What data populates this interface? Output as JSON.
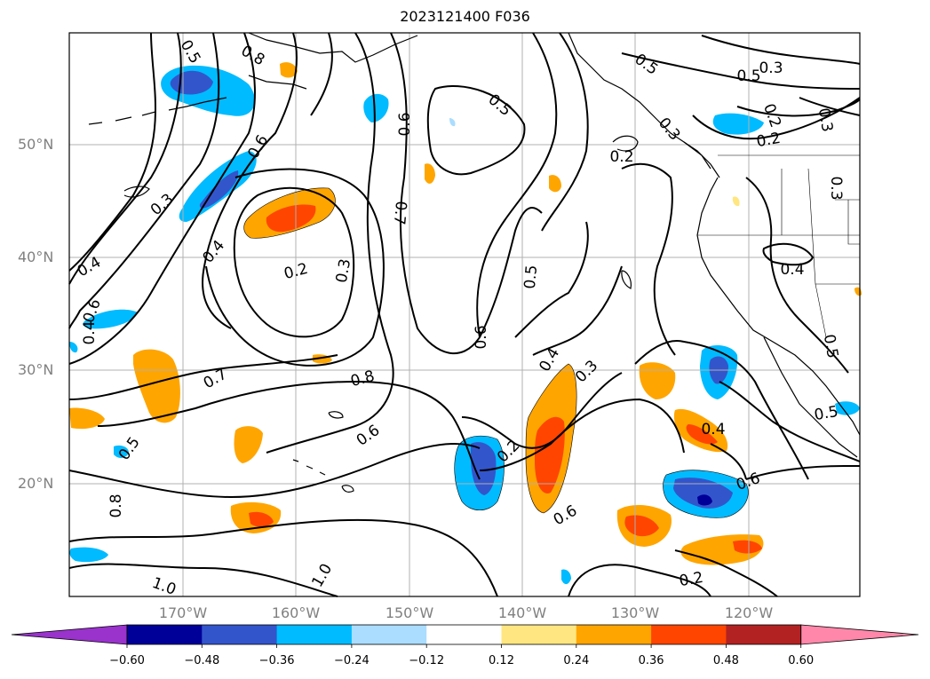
{
  "title": "2023121400 F036",
  "axes": {
    "lat_ticks": [
      "50°N",
      "40°N",
      "30°N",
      "20°N"
    ],
    "lon_ticks": [
      "170°W",
      "160°W",
      "150°W",
      "140°W",
      "130°W",
      "120°W"
    ],
    "grid": true
  },
  "colorbar": {
    "ticks": [
      "−0.60",
      "−0.48",
      "−0.36",
      "−0.24",
      "−0.12",
      "0.12",
      "0.24",
      "0.36",
      "0.48",
      "0.60"
    ],
    "colors": [
      "#9933cc",
      "#000099",
      "#3355cc",
      "#00bbff",
      "#aaddff",
      "#ffffff",
      "#ffe680",
      "#ffa500",
      "#ff4500",
      "#b22222",
      "#ff88aa"
    ],
    "extend": "both"
  },
  "contour_labels": [
    "0.5",
    "0.8",
    "0.6",
    "0.3",
    "0.4",
    "0.2",
    "0.3",
    "0.4",
    "0.6",
    "0.8",
    "1.0",
    "1.0",
    "0.6",
    "0.5",
    "0.7",
    "0.5",
    "0.6",
    "0.4",
    "0.3",
    "0.2",
    "0.6",
    "0.7",
    "0.8",
    "0.5",
    "0.5",
    "0.5",
    "0.3",
    "0.2",
    "0.2",
    "0.3",
    "0.2",
    "0.3",
    "0.4",
    "0.5",
    "0.5",
    "0.4",
    "0.6",
    "0.2",
    "0.3",
    "0.4",
    "0.6"
  ],
  "colors": {
    "contour": "#000000",
    "grid": "#b0b0b0",
    "coast": "#000000"
  }
}
